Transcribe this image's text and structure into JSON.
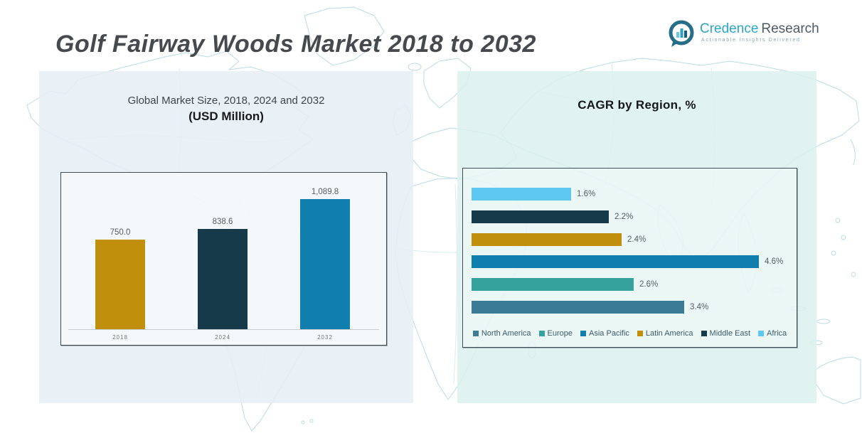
{
  "page": {
    "title": "Golf Fairway Woods Market 2018 to 2032"
  },
  "logo": {
    "brand_primary": "Credence",
    "brand_secondary": "Research",
    "tagline": "Actionable Insights Delivered"
  },
  "left_chart": {
    "title_line1": "Global Market Size, 2018, 2024 and 2032",
    "title_line2": "(USD Million)"
  },
  "right_chart": {
    "title": "CAGR by Region, %"
  },
  "chart_data": [
    {
      "type": "bar",
      "title": "Global Market Size, 2018, 2024 and 2032 (USD Million)",
      "categories": [
        "2018",
        "2024",
        "2032"
      ],
      "values": [
        750.0,
        838.6,
        1089.8
      ],
      "value_labels": [
        "750.0",
        "838.6",
        "1,089.8"
      ],
      "colors": [
        "#C08F0B",
        "#173A4A",
        "#107FAE"
      ],
      "ylabel": "USD Million",
      "ylim": [
        0,
        1150
      ],
      "grid": false,
      "legend_position": "none"
    },
    {
      "type": "bar",
      "orientation": "horizontal",
      "title": "CAGR by Region, %",
      "categories": [
        "Africa",
        "Middle East",
        "Latin America",
        "Asia Pacific",
        "Europe",
        "North America"
      ],
      "values": [
        1.6,
        2.2,
        2.4,
        4.6,
        2.6,
        3.4
      ],
      "value_labels": [
        "1.6%",
        "2.2%",
        "2.4%",
        "4.6%",
        "2.6%",
        "3.4%"
      ],
      "colors": [
        "#5EC7F2",
        "#173A4A",
        "#C08F0B",
        "#107FAE",
        "#35A29D",
        "#3B7B96"
      ],
      "xlim": [
        0,
        5.2
      ],
      "grid": false,
      "legend_position": "bottom",
      "legend": [
        {
          "label": "North America",
          "color": "#3B7B96"
        },
        {
          "label": "Europe",
          "color": "#35A29D"
        },
        {
          "label": "Asia Pacific",
          "color": "#107FAE"
        },
        {
          "label": "Latin America",
          "color": "#C08F0B"
        },
        {
          "label": "Middle East",
          "color": "#173A4A"
        },
        {
          "label": "Africa",
          "color": "#5EC7F2"
        }
      ]
    }
  ]
}
